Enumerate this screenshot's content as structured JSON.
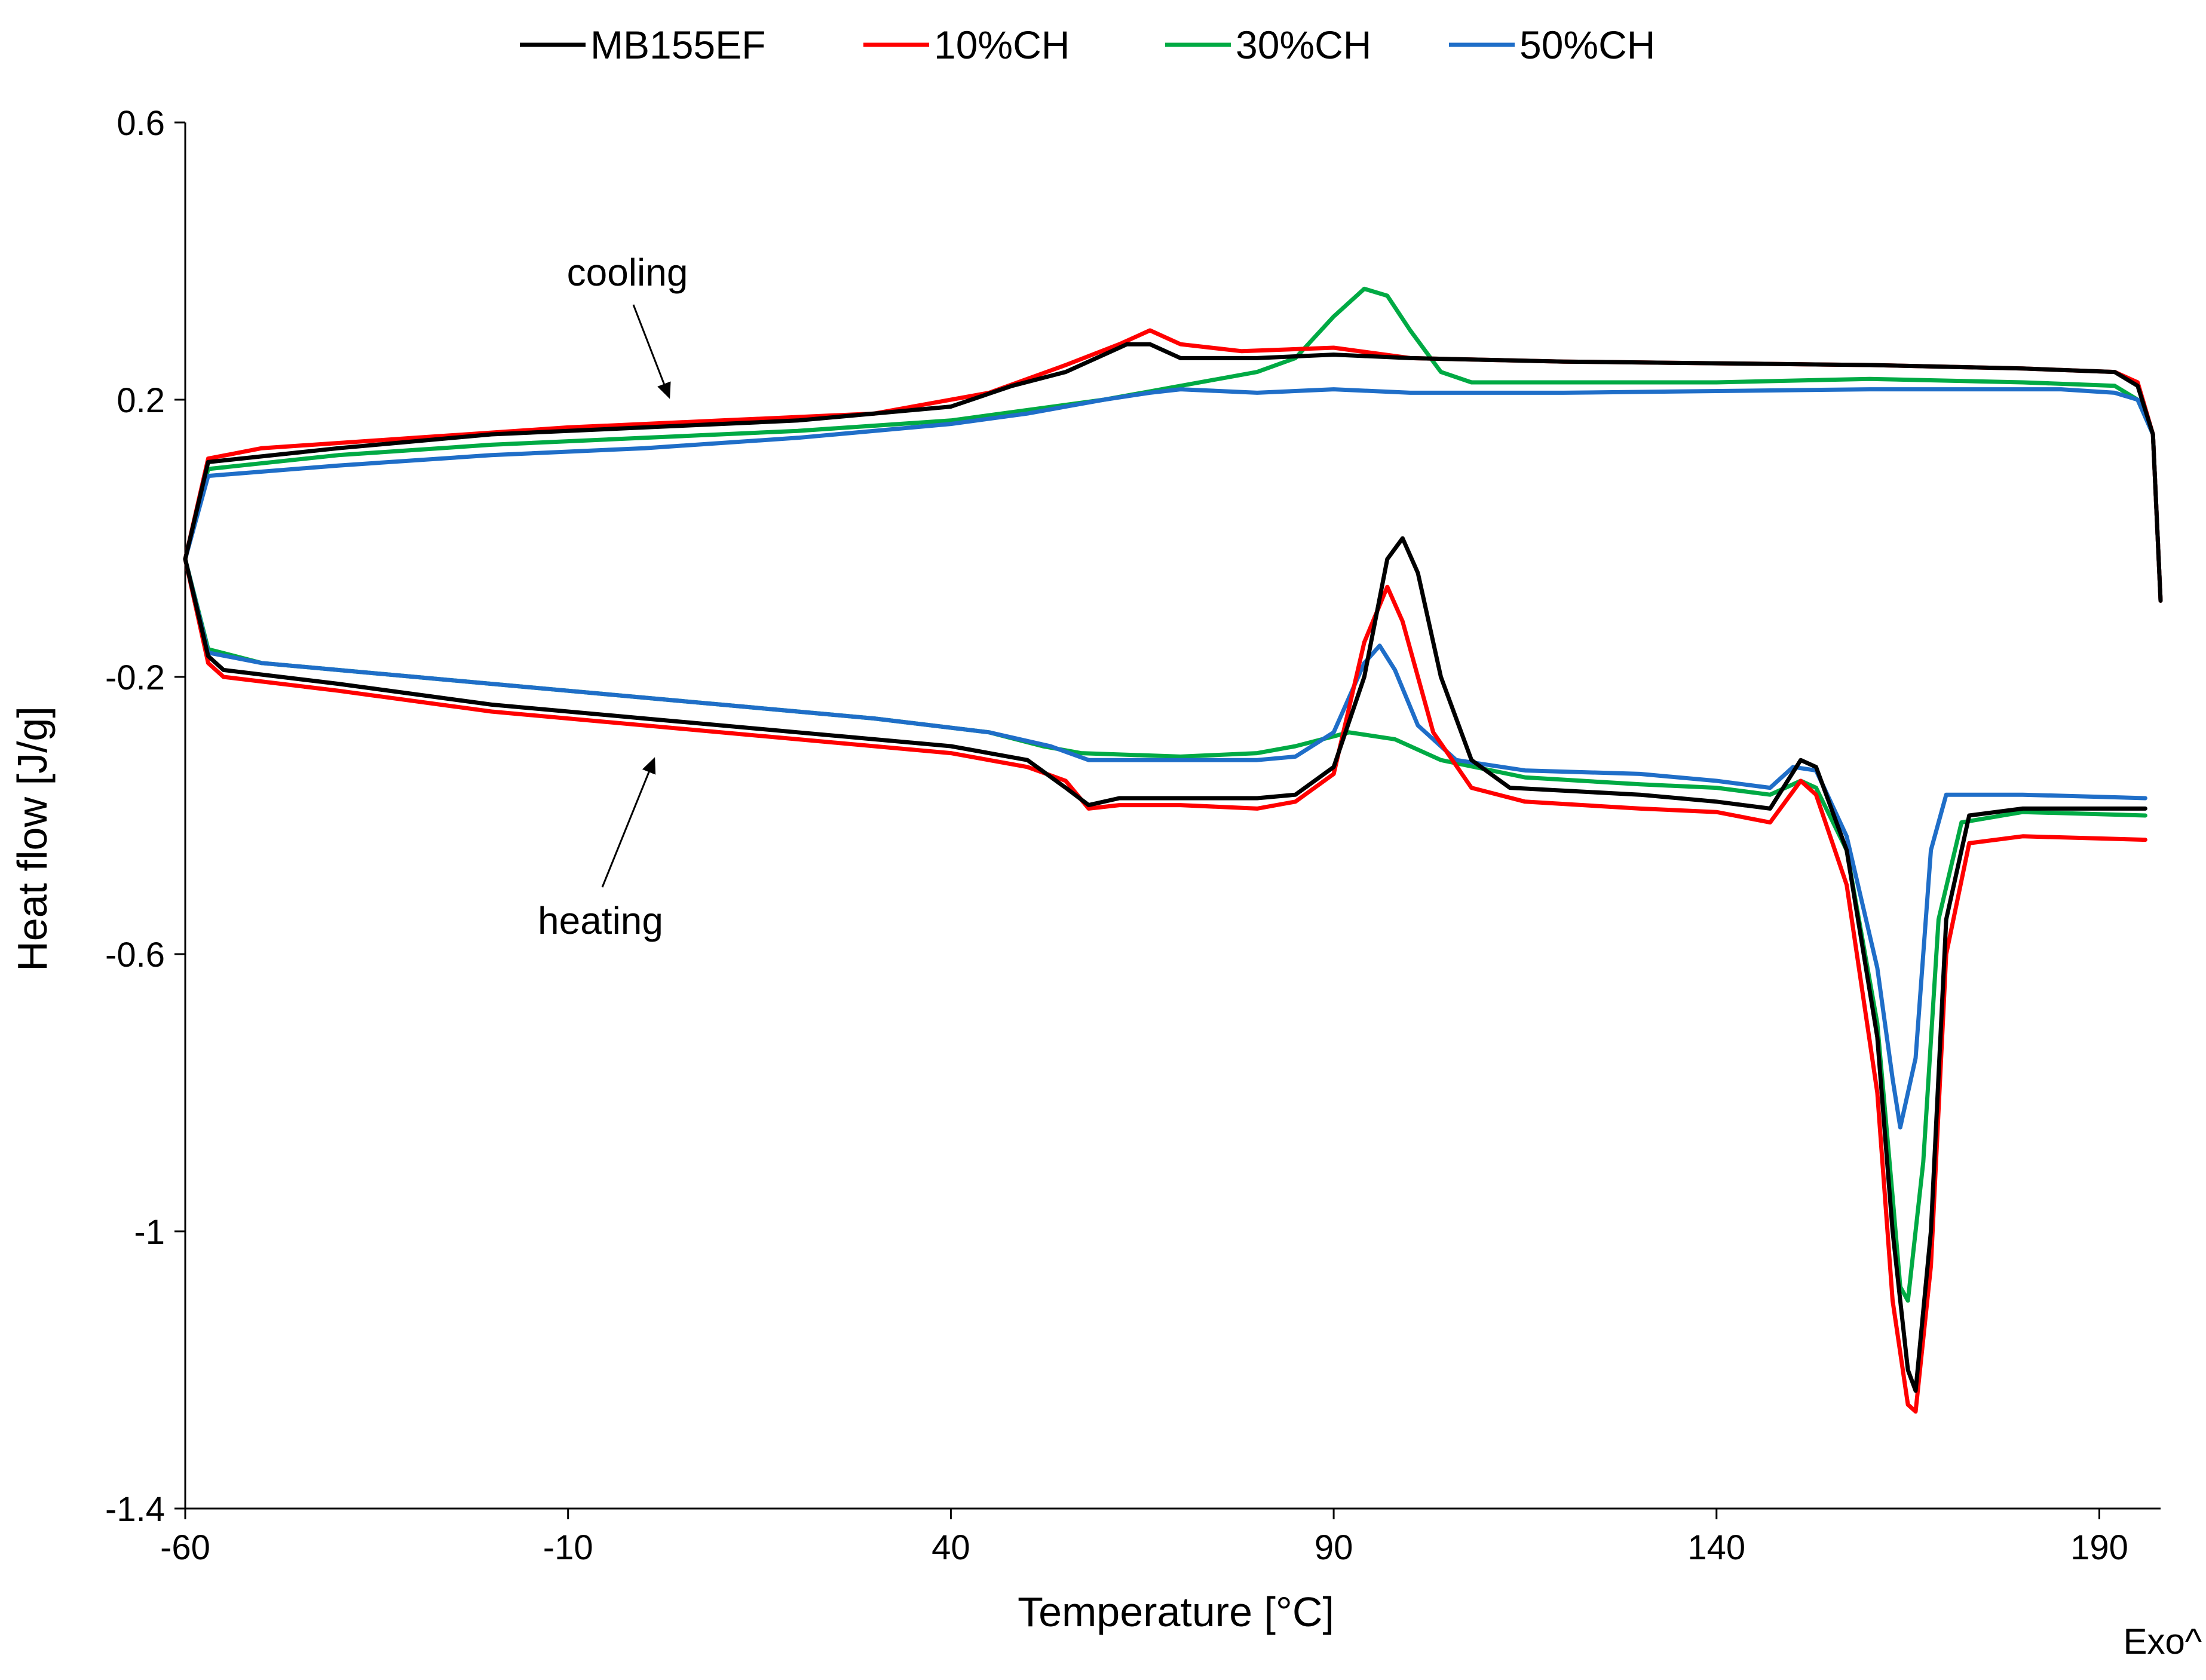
{
  "chart_data": {
    "type": "line",
    "title": "",
    "xlabel": "Temperature [°C]",
    "ylabel": "Heat flow [J/g]",
    "xlim": [
      -60,
      198
    ],
    "ylim": [
      -1.4,
      0.6
    ],
    "xticks": [
      -60,
      -10,
      40,
      90,
      140,
      190
    ],
    "yticks": [
      0.6,
      0.2,
      -0.2,
      -0.6,
      -1,
      -1.4
    ],
    "corner_note": "Exo^",
    "legend": {
      "position": "top-center"
    },
    "annotations": [
      {
        "text": "cooling",
        "points_to": "cooling curves"
      },
      {
        "text": "heating",
        "points_to": "heating curves"
      }
    ],
    "series": [
      {
        "name": "MB155EF",
        "color": "#000000",
        "cooling": [
          [
            -60,
            -0.03
          ],
          [
            -57,
            0.11
          ],
          [
            -40,
            0.13
          ],
          [
            -20,
            0.15
          ],
          [
            0,
            0.16
          ],
          [
            20,
            0.17
          ],
          [
            40,
            0.19
          ],
          [
            48,
            0.22
          ],
          [
            55,
            0.24
          ],
          [
            61,
            0.27
          ],
          [
            63,
            0.28
          ],
          [
            66,
            0.28
          ],
          [
            70,
            0.26
          ],
          [
            80,
            0.26
          ],
          [
            90,
            0.265
          ],
          [
            100,
            0.26
          ],
          [
            120,
            0.255
          ],
          [
            160,
            0.25
          ],
          [
            180,
            0.245
          ],
          [
            192,
            0.24
          ],
          [
            195,
            0.22
          ],
          [
            197,
            0.15
          ],
          [
            198,
            -0.09
          ]
        ],
        "heating": [
          [
            -60,
            -0.03
          ],
          [
            -57,
            -0.17
          ],
          [
            -55,
            -0.19
          ],
          [
            -40,
            -0.21
          ],
          [
            -20,
            -0.24
          ],
          [
            0,
            -0.26
          ],
          [
            20,
            -0.28
          ],
          [
            40,
            -0.3
          ],
          [
            50,
            -0.32
          ],
          [
            55,
            -0.36
          ],
          [
            58,
            -0.385
          ],
          [
            62,
            -0.375
          ],
          [
            70,
            -0.375
          ],
          [
            80,
            -0.375
          ],
          [
            85,
            -0.37
          ],
          [
            90,
            -0.33
          ],
          [
            94,
            -0.2
          ],
          [
            97,
            -0.03
          ],
          [
            99,
            0.0
          ],
          [
            101,
            -0.05
          ],
          [
            104,
            -0.2
          ],
          [
            108,
            -0.32
          ],
          [
            113,
            -0.36
          ],
          [
            130,
            -0.37
          ],
          [
            140,
            -0.38
          ],
          [
            147,
            -0.39
          ],
          [
            151,
            -0.32
          ],
          [
            153,
            -0.33
          ],
          [
            157,
            -0.45
          ],
          [
            161,
            -0.72
          ],
          [
            163,
            -1.0
          ],
          [
            165,
            -1.2
          ],
          [
            166,
            -1.23
          ],
          [
            168,
            -1.0
          ],
          [
            170,
            -0.55
          ],
          [
            173,
            -0.4
          ],
          [
            180,
            -0.39
          ],
          [
            196,
            -0.39
          ]
        ]
      },
      {
        "name": "10%CH",
        "color": "#ff0000",
        "cooling": [
          [
            -60,
            -0.03
          ],
          [
            -57,
            0.115
          ],
          [
            -50,
            0.13
          ],
          [
            -30,
            0.145
          ],
          [
            -10,
            0.16
          ],
          [
            10,
            0.17
          ],
          [
            30,
            0.18
          ],
          [
            45,
            0.21
          ],
          [
            55,
            0.25
          ],
          [
            62,
            0.28
          ],
          [
            66,
            0.3
          ],
          [
            70,
            0.28
          ],
          [
            78,
            0.27
          ],
          [
            90,
            0.275
          ],
          [
            100,
            0.26
          ],
          [
            120,
            0.255
          ],
          [
            160,
            0.25
          ],
          [
            180,
            0.245
          ],
          [
            192,
            0.24
          ],
          [
            195,
            0.225
          ],
          [
            197,
            0.15
          ],
          [
            198,
            -0.09
          ]
        ],
        "heating": [
          [
            -60,
            -0.03
          ],
          [
            -57,
            -0.18
          ],
          [
            -55,
            -0.2
          ],
          [
            -40,
            -0.22
          ],
          [
            -20,
            -0.25
          ],
          [
            0,
            -0.27
          ],
          [
            20,
            -0.29
          ],
          [
            40,
            -0.31
          ],
          [
            50,
            -0.33
          ],
          [
            55,
            -0.35
          ],
          [
            58,
            -0.39
          ],
          [
            62,
            -0.385
          ],
          [
            70,
            -0.385
          ],
          [
            80,
            -0.39
          ],
          [
            85,
            -0.38
          ],
          [
            90,
            -0.34
          ],
          [
            94,
            -0.15
          ],
          [
            97,
            -0.07
          ],
          [
            99,
            -0.12
          ],
          [
            103,
            -0.28
          ],
          [
            108,
            -0.36
          ],
          [
            115,
            -0.38
          ],
          [
            130,
            -0.39
          ],
          [
            140,
            -0.395
          ],
          [
            147,
            -0.41
          ],
          [
            151,
            -0.35
          ],
          [
            153,
            -0.37
          ],
          [
            157,
            -0.5
          ],
          [
            161,
            -0.8
          ],
          [
            163,
            -1.1
          ],
          [
            165,
            -1.25
          ],
          [
            166,
            -1.26
          ],
          [
            168,
            -1.05
          ],
          [
            170,
            -0.6
          ],
          [
            173,
            -0.44
          ],
          [
            180,
            -0.43
          ],
          [
            196,
            -0.435
          ]
        ]
      },
      {
        "name": "30%CH",
        "color": "#00aa44",
        "cooling": [
          [
            -60,
            -0.03
          ],
          [
            -57,
            0.1
          ],
          [
            -40,
            0.12
          ],
          [
            -20,
            0.135
          ],
          [
            0,
            0.145
          ],
          [
            20,
            0.155
          ],
          [
            40,
            0.17
          ],
          [
            50,
            0.185
          ],
          [
            60,
            0.2
          ],
          [
            70,
            0.22
          ],
          [
            80,
            0.24
          ],
          [
            85,
            0.26
          ],
          [
            90,
            0.32
          ],
          [
            94,
            0.36
          ],
          [
            97,
            0.35
          ],
          [
            100,
            0.3
          ],
          [
            104,
            0.24
          ],
          [
            108,
            0.225
          ],
          [
            140,
            0.225
          ],
          [
            160,
            0.23
          ],
          [
            180,
            0.225
          ],
          [
            192,
            0.22
          ],
          [
            195,
            0.2
          ],
          [
            197,
            0.15
          ],
          [
            198,
            -0.09
          ]
        ],
        "heating": [
          [
            -60,
            -0.03
          ],
          [
            -57,
            -0.16
          ],
          [
            -50,
            -0.18
          ],
          [
            -30,
            -0.2
          ],
          [
            -10,
            -0.22
          ],
          [
            10,
            -0.24
          ],
          [
            30,
            -0.26
          ],
          [
            45,
            -0.28
          ],
          [
            52,
            -0.3
          ],
          [
            57,
            -0.31
          ],
          [
            70,
            -0.315
          ],
          [
            80,
            -0.31
          ],
          [
            85,
            -0.3
          ],
          [
            92,
            -0.28
          ],
          [
            98,
            -0.29
          ],
          [
            104,
            -0.32
          ],
          [
            115,
            -0.345
          ],
          [
            130,
            -0.355
          ],
          [
            140,
            -0.36
          ],
          [
            147,
            -0.37
          ],
          [
            151,
            -0.35
          ],
          [
            153,
            -0.36
          ],
          [
            157,
            -0.45
          ],
          [
            161,
            -0.7
          ],
          [
            163,
            -0.95
          ],
          [
            164,
            -1.08
          ],
          [
            165,
            -1.1
          ],
          [
            167,
            -0.9
          ],
          [
            169,
            -0.55
          ],
          [
            172,
            -0.41
          ],
          [
            180,
            -0.395
          ],
          [
            196,
            -0.4
          ]
        ]
      },
      {
        "name": "50%CH",
        "color": "#1f6ec8",
        "cooling": [
          [
            -60,
            -0.03
          ],
          [
            -57,
            0.09
          ],
          [
            -40,
            0.105
          ],
          [
            -20,
            0.12
          ],
          [
            0,
            0.13
          ],
          [
            20,
            0.145
          ],
          [
            40,
            0.165
          ],
          [
            50,
            0.18
          ],
          [
            60,
            0.2
          ],
          [
            66,
            0.21
          ],
          [
            70,
            0.215
          ],
          [
            80,
            0.21
          ],
          [
            90,
            0.215
          ],
          [
            100,
            0.21
          ],
          [
            120,
            0.21
          ],
          [
            160,
            0.215
          ],
          [
            185,
            0.215
          ],
          [
            192,
            0.21
          ],
          [
            195,
            0.2
          ],
          [
            197,
            0.15
          ],
          [
            198,
            -0.09
          ]
        ],
        "heating": [
          [
            -60,
            -0.03
          ],
          [
            -57,
            -0.165
          ],
          [
            -50,
            -0.18
          ],
          [
            -30,
            -0.2
          ],
          [
            -10,
            -0.22
          ],
          [
            10,
            -0.24
          ],
          [
            30,
            -0.26
          ],
          [
            45,
            -0.28
          ],
          [
            53,
            -0.3
          ],
          [
            58,
            -0.32
          ],
          [
            70,
            -0.32
          ],
          [
            80,
            -0.32
          ],
          [
            85,
            -0.315
          ],
          [
            90,
            -0.28
          ],
          [
            94,
            -0.18
          ],
          [
            96,
            -0.155
          ],
          [
            98,
            -0.19
          ],
          [
            101,
            -0.27
          ],
          [
            106,
            -0.32
          ],
          [
            115,
            -0.335
          ],
          [
            130,
            -0.34
          ],
          [
            140,
            -0.35
          ],
          [
            147,
            -0.36
          ],
          [
            150,
            -0.33
          ],
          [
            153,
            -0.335
          ],
          [
            157,
            -0.43
          ],
          [
            161,
            -0.62
          ],
          [
            163,
            -0.78
          ],
          [
            164,
            -0.85
          ],
          [
            166,
            -0.75
          ],
          [
            168,
            -0.45
          ],
          [
            170,
            -0.37
          ],
          [
            180,
            -0.37
          ],
          [
            196,
            -0.375
          ]
        ]
      }
    ]
  }
}
